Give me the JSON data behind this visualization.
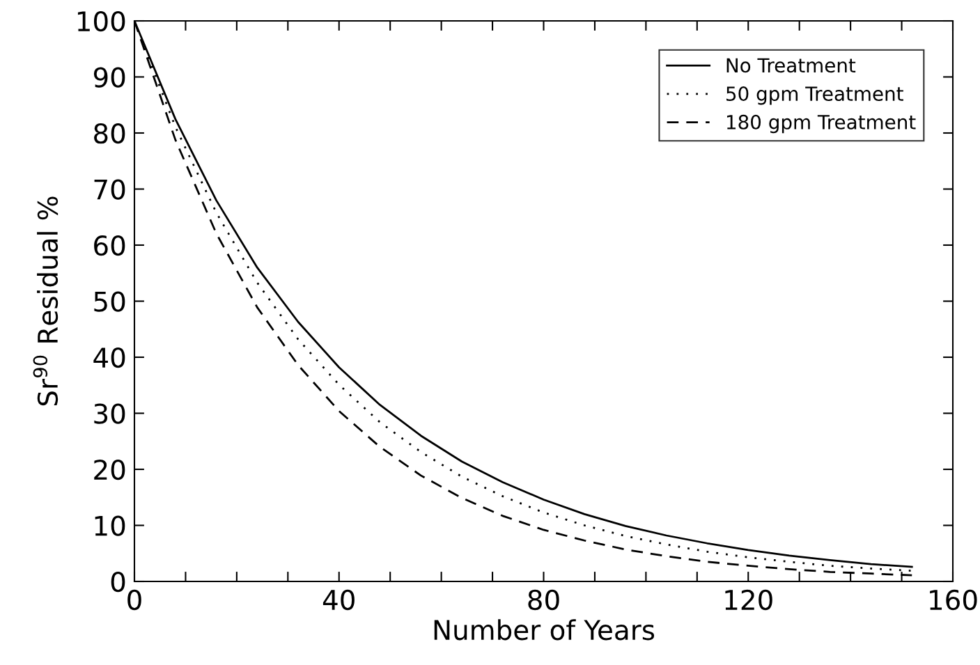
{
  "chart_data": {
    "type": "line",
    "xlabel": "Number of Years",
    "ylabel": "Sr$^{90}$ Residual %",
    "xlim": [
      0,
      160
    ],
    "ylim": [
      0,
      100
    ],
    "xticks": [
      0,
      {
        "value": 10,
        "label": null
      },
      {
        "value": 20,
        "label": null
      },
      {
        "value": 30,
        "label": null
      },
      40,
      {
        "value": 50,
        "label": null
      },
      {
        "value": 60,
        "label": null
      },
      {
        "value": 70,
        "label": null
      },
      80,
      {
        "value": 90,
        "label": null
      },
      {
        "value": 100,
        "label": null
      },
      {
        "value": 110,
        "label": null
      },
      120,
      {
        "value": 130,
        "label": null
      },
      {
        "value": 140,
        "label": null
      },
      {
        "value": 150,
        "label": null
      },
      160
    ],
    "yticks": [
      0,
      10,
      20,
      30,
      40,
      50,
      60,
      70,
      80,
      90,
      100
    ],
    "x": [
      0,
      8,
      16,
      24,
      32,
      40,
      48,
      56,
      64,
      72,
      80,
      88,
      96,
      104,
      112,
      120,
      128,
      136,
      144,
      152
    ],
    "grid": false,
    "legend": "top right",
    "series": [
      {
        "name": "No Treatment",
        "color": "#000000",
        "line_style": "solid",
        "values": [
          100,
          82.5,
          68,
          56,
          46.3,
          38.2,
          31.5,
          26,
          21.4,
          17.7,
          14.6,
          12,
          9.9,
          8.2,
          6.8,
          5.6,
          4.6,
          3.8,
          3.1,
          2.6
        ]
      },
      {
        "name": "50 gpm Treatment",
        "color": "#000000",
        "line_style": "dotted",
        "values": [
          100,
          81.1,
          65.8,
          53.3,
          43.2,
          35.1,
          28.4,
          23.1,
          18.7,
          15.2,
          12.3,
          10,
          8.1,
          6.6,
          5.3,
          4.3,
          3.5,
          2.8,
          2.3,
          1.9
        ]
      },
      {
        "name": "180 gpm Treatment",
        "color": "#000000",
        "line_style": "dashed",
        "values": [
          100,
          78.8,
          62.1,
          48.9,
          38.6,
          30.4,
          24,
          18.9,
          14.9,
          11.7,
          9.2,
          7.3,
          5.7,
          4.5,
          3.5,
          2.8,
          2.2,
          1.7,
          1.4,
          1.1
        ]
      }
    ]
  }
}
